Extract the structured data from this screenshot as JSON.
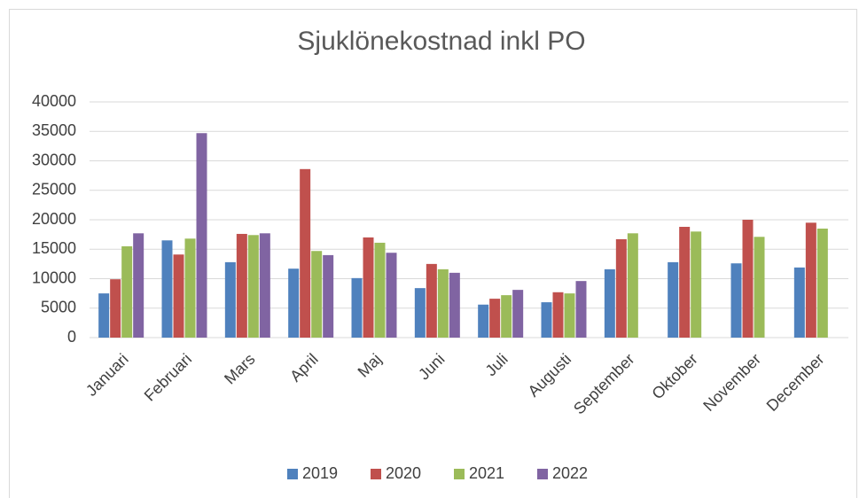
{
  "chart_data": {
    "type": "bar",
    "title": "Sjuklönekostnad inkl PO",
    "categories": [
      "Januari",
      "Februari",
      "Mars",
      "April",
      "Maj",
      "Juni",
      "Juli",
      "Augusti",
      "September",
      "Oktober",
      "November",
      "December"
    ],
    "series": [
      {
        "name": "2019",
        "color": "#4f81bd",
        "values": [
          7500,
          16500,
          12800,
          11700,
          10100,
          8400,
          5600,
          6000,
          11600,
          12800,
          12600,
          11900
        ]
      },
      {
        "name": "2020",
        "color": "#c0504d",
        "values": [
          9900,
          14100,
          17600,
          28600,
          17000,
          12500,
          6600,
          7700,
          16700,
          18800,
          20000,
          19500
        ]
      },
      {
        "name": "2021",
        "color": "#9bbb59",
        "values": [
          15500,
          16800,
          17400,
          14700,
          16100,
          11600,
          7200,
          7500,
          17700,
          18000,
          17100,
          18500
        ]
      },
      {
        "name": "2022",
        "color": "#8064a2",
        "values": [
          17700,
          34700,
          17700,
          14000,
          14400,
          11000,
          8100,
          9600,
          null,
          null,
          null,
          null
        ]
      }
    ],
    "ylim": [
      0,
      40000
    ],
    "yticks": [
      0,
      5000,
      10000,
      15000,
      20000,
      25000,
      30000,
      35000,
      40000
    ],
    "grid": true,
    "legend": "bottom"
  }
}
